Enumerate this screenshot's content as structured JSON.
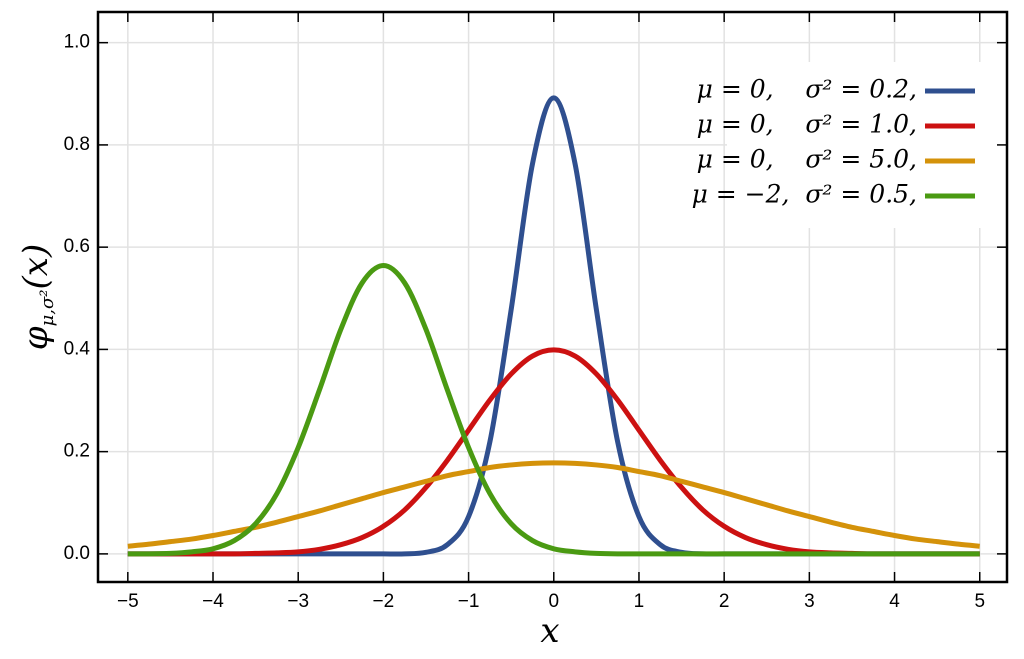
{
  "chart_data": {
    "type": "line",
    "x_label": "x",
    "y_label": "φ",
    "y_label_sub": "μ,σ²",
    "y_label_arg": "(x)",
    "x": [
      -5,
      -4.75,
      -4.5,
      -4.25,
      -4,
      -3.75,
      -3.5,
      -3.25,
      -3,
      -2.75,
      -2.5,
      -2.25,
      -2,
      -1.75,
      -1.5,
      -1.25,
      -1,
      -0.75,
      -0.5,
      -0.25,
      0,
      0.25,
      0.5,
      0.75,
      1,
      1.25,
      1.5,
      1.75,
      2,
      2.25,
      2.5,
      2.75,
      3,
      3.25,
      3.5,
      3.75,
      4,
      4.25,
      4.5,
      4.75,
      5
    ],
    "series": [
      {
        "name": "μ = 0,    σ² = 0.2,",
        "color": "#2f4f8f",
        "values": [
          0,
          0,
          0,
          0,
          0,
          0,
          0,
          0,
          0,
          0,
          0,
          0,
          0,
          0,
          0.003,
          0.018,
          0.073,
          0.219,
          0.478,
          0.763,
          0.892,
          0.763,
          0.478,
          0.219,
          0.073,
          0.018,
          0.003,
          0,
          0,
          0,
          0,
          0,
          0,
          0,
          0,
          0,
          0,
          0,
          0,
          0,
          0
        ]
      },
      {
        "name": "μ = 0,    σ² = 1.0,",
        "color": "#cc1111",
        "values": [
          0,
          0,
          0,
          0,
          0,
          0,
          0.001,
          0.002,
          0.004,
          0.009,
          0.018,
          0.032,
          0.054,
          0.086,
          0.13,
          0.183,
          0.242,
          0.301,
          0.352,
          0.387,
          0.399,
          0.387,
          0.352,
          0.301,
          0.242,
          0.183,
          0.13,
          0.086,
          0.054,
          0.032,
          0.018,
          0.009,
          0.004,
          0.002,
          0.001,
          0,
          0,
          0,
          0,
          0,
          0
        ]
      },
      {
        "name": "μ = 0,    σ² = 5.0,",
        "color": "#d4920a",
        "values": [
          0.015,
          0.019,
          0.024,
          0.029,
          0.036,
          0.044,
          0.052,
          0.062,
          0.073,
          0.084,
          0.096,
          0.108,
          0.12,
          0.131,
          0.142,
          0.153,
          0.161,
          0.169,
          0.174,
          0.177,
          0.178,
          0.177,
          0.174,
          0.169,
          0.161,
          0.153,
          0.142,
          0.131,
          0.12,
          0.108,
          0.096,
          0.084,
          0.073,
          0.062,
          0.052,
          0.044,
          0.036,
          0.029,
          0.024,
          0.019,
          0.015
        ]
      },
      {
        "name": "μ = −2,  σ² = 0.5,",
        "color": "#4a9a12",
        "values": [
          0,
          0,
          0.001,
          0.004,
          0.01,
          0.026,
          0.059,
          0.118,
          0.208,
          0.321,
          0.439,
          0.53,
          0.564,
          0.53,
          0.439,
          0.321,
          0.208,
          0.118,
          0.059,
          0.026,
          0.01,
          0.004,
          0.001,
          0,
          0,
          0,
          0,
          0,
          0,
          0,
          0,
          0,
          0,
          0,
          0,
          0,
          0,
          0,
          0,
          0,
          0
        ]
      }
    ],
    "xlim": [
      -5.35,
      5.32
    ],
    "ylim": [
      -0.055,
      1.06
    ],
    "xticks": [
      {
        "value": -5,
        "label": "−5"
      },
      {
        "value": -4,
        "label": "−4"
      },
      {
        "value": -3,
        "label": "−3"
      },
      {
        "value": -2,
        "label": "−2"
      },
      {
        "value": -1,
        "label": "−1"
      },
      0,
      1,
      2,
      3,
      4,
      5
    ],
    "yticks": [
      {
        "value": 0,
        "label": "0.0"
      },
      0.2,
      0.4,
      0.6,
      0.8,
      {
        "value": 1,
        "label": "1.0"
      }
    ],
    "grid": true,
    "legend": "upper right"
  }
}
